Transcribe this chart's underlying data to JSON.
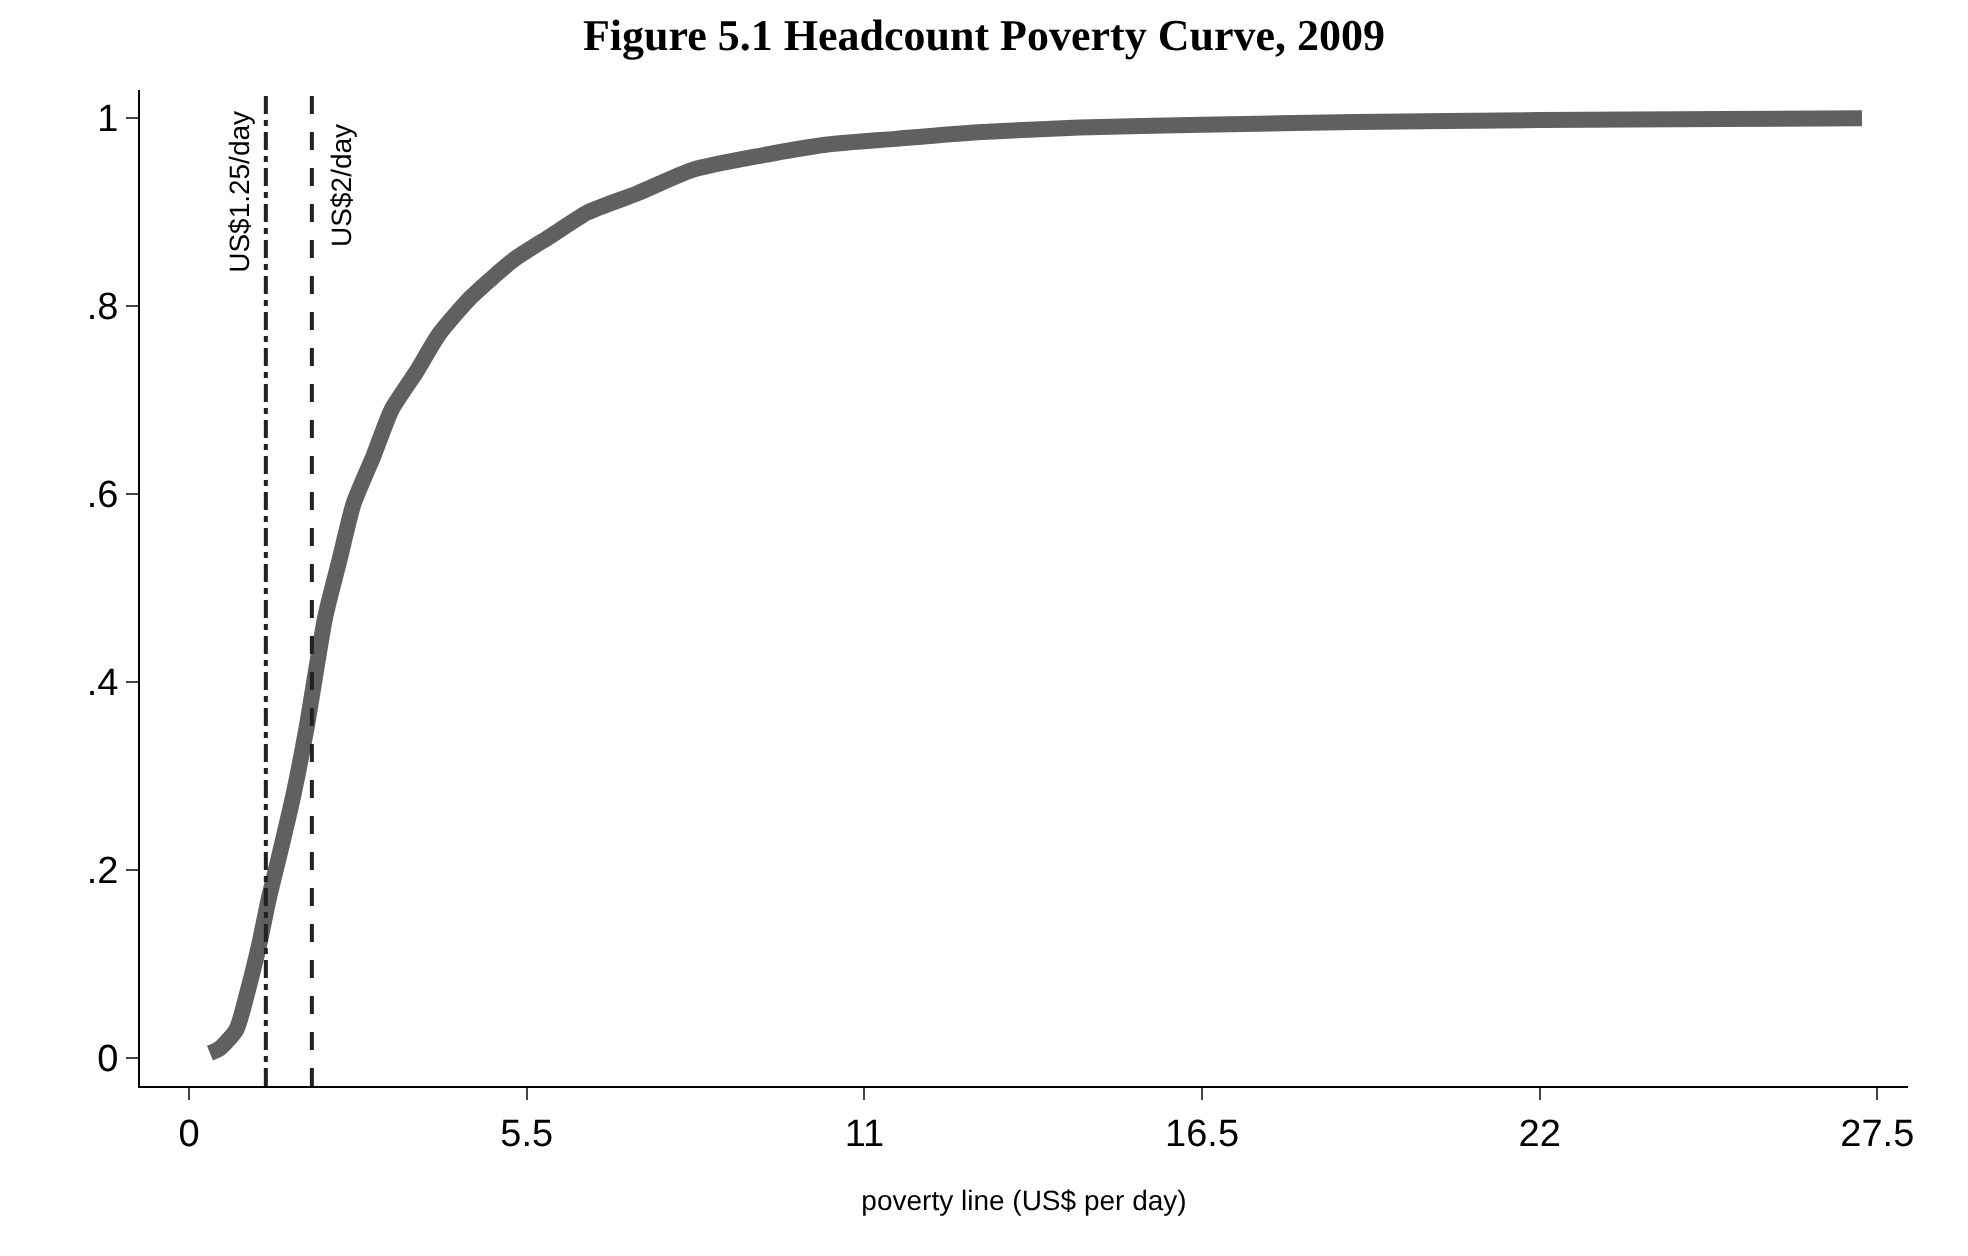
{
  "chart_data": {
    "type": "line",
    "title": "Figure 5.1 Headcount Poverty Curve, 2009",
    "xlabel": "poverty line (US$ per day)",
    "series": [
      {
        "color": "#606060",
        "x": [
          0.34,
          0.5,
          0.77,
          0.95,
          1.14,
          1.3,
          1.45,
          1.7,
          1.91,
          2.22,
          2.45,
          2.68,
          3.0,
          3.3,
          3.7,
          4.07,
          4.6,
          5.3,
          5.9,
          6.5,
          7.3,
          8.2,
          9.3,
          10.4,
          11.5,
          12.85,
          14.5,
          16.5,
          19,
          22,
          25,
          27.25
        ],
        "values": [
          0.005,
          0.01,
          0.03,
          0.07,
          0.12,
          0.17,
          0.21,
          0.28,
          0.35,
          0.47,
          0.53,
          0.59,
          0.64,
          0.69,
          0.73,
          0.77,
          0.81,
          0.85,
          0.875,
          0.9,
          0.92,
          0.945,
          0.96,
          0.972,
          0.978,
          0.985,
          0.99,
          0.993,
          0.996,
          0.998,
          0.999,
          1.0
        ]
      }
    ],
    "xlim": [
      -0.8,
      28
    ],
    "xticks": [
      0,
      5.5,
      11,
      16.5,
      22,
      27.5
    ],
    "ylim": [
      -0.03,
      1.03
    ],
    "yticks": [
      0,
      {
        "value": 0.2,
        "label": ".2"
      },
      {
        "value": 0.4,
        "label": ".4"
      },
      {
        "value": 0.6,
        "label": ".6"
      },
      {
        "value": 0.8,
        "label": ".8"
      },
      1
    ],
    "ref_lines": [
      {
        "axis": "x",
        "value": 1.25,
        "label": "US$1.25/day",
        "line_style": "dashdot",
        "color": "#222222"
      },
      {
        "axis": "x",
        "value": 2,
        "label": "US$2/day",
        "line_style": "dashed",
        "color": "#222222"
      }
    ],
    "marker": "none",
    "line_style": "solid"
  }
}
